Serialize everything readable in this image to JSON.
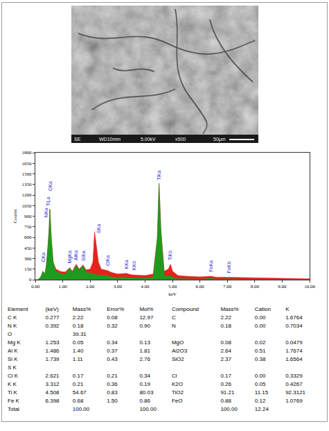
{
  "image": {
    "caption": [
      "SE",
      "WD10mm",
      "5.00kV",
      "x500",
      "50µm"
    ]
  },
  "chart_data": {
    "type": "area",
    "xlabel": "keV",
    "ylabel": "Counts",
    "x": [
      0.0,
      0.1,
      0.2,
      0.28,
      0.35,
      0.4,
      0.45,
      0.5,
      0.53,
      0.58,
      0.65,
      0.75,
      0.9,
      1.0,
      1.1,
      1.25,
      1.35,
      1.49,
      1.6,
      1.74,
      1.85,
      2.0,
      2.1,
      2.16,
      2.22,
      2.3,
      2.4,
      2.62,
      2.8,
      3.0,
      3.31,
      3.5,
      4.0,
      4.3,
      4.45,
      4.51,
      4.58,
      4.7,
      4.85,
      4.93,
      5.0,
      5.2,
      5.5,
      6.0,
      6.4,
      6.6,
      7.0,
      7.5,
      8.0,
      8.5,
      9.0,
      9.5,
      10.0
    ],
    "series": [
      {
        "color": "#e3231c",
        "values": [
          0,
          0,
          40,
          120,
          80,
          200,
          420,
          700,
          1000,
          600,
          250,
          150,
          120,
          110,
          110,
          170,
          120,
          220,
          150,
          210,
          140,
          150,
          250,
          680,
          500,
          250,
          150,
          130,
          100,
          80,
          90,
          70,
          60,
          80,
          600,
          1370,
          700,
          120,
          150,
          220,
          120,
          60,
          50,
          40,
          50,
          35,
          35,
          30,
          25,
          22,
          18,
          15,
          12
        ]
      },
      {
        "color": "#1e9b1e",
        "values": [
          0,
          0,
          40,
          120,
          80,
          200,
          420,
          700,
          1000,
          600,
          250,
          120,
          90,
          80,
          80,
          170,
          100,
          200,
          130,
          200,
          110,
          90,
          80,
          80,
          70,
          70,
          60,
          60,
          40,
          30,
          40,
          25,
          20,
          40,
          590,
          1360,
          680,
          60,
          50,
          60,
          30,
          15,
          10,
          5,
          20,
          5,
          10,
          3,
          2,
          2,
          2,
          2,
          2
        ]
      }
    ],
    "xlim": [
      0,
      10
    ],
    "ylim": [
      0,
      1800
    ],
    "xticks": [
      {
        "value": 0,
        "label": "0.00"
      },
      {
        "value": 1,
        "label": "1.00"
      },
      {
        "value": 2,
        "label": "2.00"
      },
      {
        "value": 3,
        "label": "3.00"
      },
      {
        "value": 4,
        "label": "4.00"
      },
      {
        "value": 5,
        "label": "5.00"
      },
      {
        "value": 6,
        "label": "6.00"
      },
      {
        "value": 7,
        "label": "7.00"
      },
      {
        "value": 8,
        "label": "8.00"
      },
      {
        "value": 9,
        "label": "9.00"
      },
      {
        "value": 10,
        "label": "10.00"
      }
    ],
    "yticks": [
      0,
      150,
      300,
      450,
      600,
      750,
      900,
      1050,
      1200,
      1350,
      1500,
      1650,
      1800
    ],
    "grid": false,
    "peak_labels": [
      {
        "label": "CKa",
        "x": 0.277
      },
      {
        "label": "NKa",
        "x": 0.392
      },
      {
        "label": "TiLa",
        "x": 0.452
      },
      {
        "label": "OKa",
        "x": 0.525
      },
      {
        "label": "MgKa",
        "x": 1.253
      },
      {
        "label": "AlKa",
        "x": 1.486
      },
      {
        "label": "SiKa",
        "x": 1.739
      },
      {
        "label": "SKa",
        "x": 2.307
      },
      {
        "label": "ClKa",
        "x": 2.621
      },
      {
        "label": "KKa",
        "x": 3.312
      },
      {
        "label": "KKb",
        "x": 3.589
      },
      {
        "label": "TiKa",
        "x": 4.508
      },
      {
        "label": "TiKb",
        "x": 4.931
      },
      {
        "label": "FeKa",
        "x": 6.398
      },
      {
        "label": "FeKb",
        "x": 7.057
      }
    ]
  },
  "table": {
    "header": [
      "Element",
      "(keV)",
      "Mass%",
      "Error%",
      "Mol%",
      "Compound",
      "Mass%",
      "Cation",
      "K"
    ],
    "rows": [
      [
        "C K",
        "0.277",
        "2.22",
        "0.08",
        "12.97",
        "C",
        "2.22",
        "0.00",
        "1.6764"
      ],
      [
        "N K",
        "0.392",
        "0.18",
        "0.32",
        "0.90",
        "N",
        "0.18",
        "0.00",
        "0.7034"
      ],
      [
        "O",
        "",
        "39.31",
        "",
        "",
        "",
        "",
        "",
        ""
      ],
      [
        "Mg K",
        "1.253",
        "0.05",
        "0.34",
        "0.13",
        "MgO",
        "0.08",
        "0.02",
        "0.0479"
      ],
      [
        "Al K",
        "1.486",
        "1.40",
        "0.37",
        "1.81",
        "Al2O3",
        "2.64",
        "0.51",
        "1.7674"
      ],
      [
        "Si K",
        "1.739",
        "1.11",
        "0.43",
        "2.76",
        "SiO2",
        "2.37",
        "0.38",
        "1.6564"
      ],
      [
        "S K",
        "",
        "",
        "",
        "",
        "",
        "",
        "",
        ""
      ],
      [
        "Cl K",
        "2.621",
        "0.17",
        "0.21",
        "0.34",
        "Cl",
        "0.17",
        "0.00",
        "0.3329"
      ],
      [
        "K K",
        "3.312",
        "0.21",
        "0.36",
        "0.19",
        "K2O",
        "0.26",
        "0.05",
        "0.4267"
      ],
      [
        "Ti K",
        "4.508",
        "54.67",
        "0.83",
        "80.03",
        "TiO2",
        "91.21",
        "11.15",
        "92.3121"
      ],
      [
        "Fe K",
        "6.398",
        "0.68",
        "1.50",
        "0.86",
        "FeO",
        "0.88",
        "0.12",
        "1.0769"
      ],
      [
        "Total",
        "",
        "100.00",
        "",
        "100.00",
        "",
        "100.00",
        "12.24",
        ""
      ]
    ]
  }
}
